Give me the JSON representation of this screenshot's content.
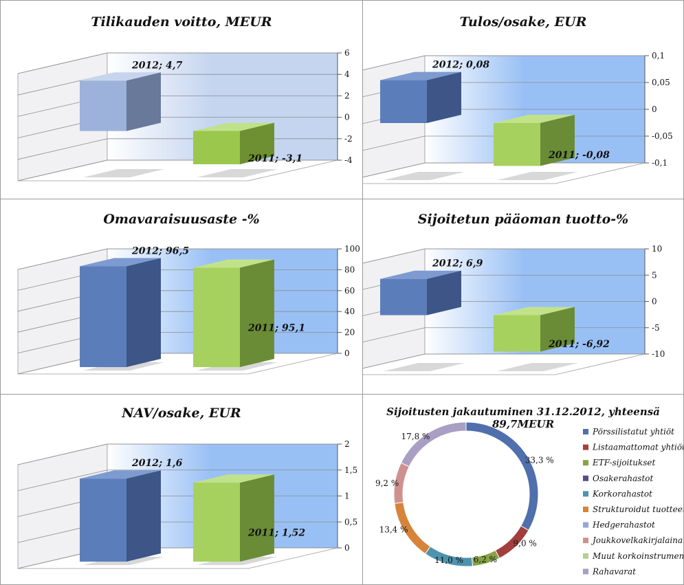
{
  "charts": [
    {
      "title": "Tilikauden voitto, MEUR",
      "type": "bar3d",
      "yticks": [
        "6",
        "4",
        "2",
        "0",
        "-2",
        "-4"
      ],
      "ymin": -4,
      "ymax": 6,
      "bg": "#c5d5f0",
      "bars": [
        {
          "value": 4.7,
          "label": "2012; 4,7",
          "front": "#9cb2da",
          "side": "#68799a",
          "top": "#c6d4ee"
        },
        {
          "value": -3.1,
          "label": "2011; -3,1",
          "front": "#9bc84c",
          "side": "#6f9032",
          "top": "#c1e08a"
        }
      ]
    },
    {
      "title": "Tulos/osake, EUR",
      "type": "bar3d",
      "yticks": [
        "0,1",
        "0,05",
        "0",
        "-0,05",
        "-0,1"
      ],
      "ymin": -0.1,
      "ymax": 0.1,
      "bg": "#99c0f5",
      "bars": [
        {
          "value": 0.08,
          "label": "2012; 0,08",
          "front": "#5b7ebb",
          "side": "#3d5587",
          "top": "#7d9bd0"
        },
        {
          "value": -0.08,
          "label": "2011; -0,08",
          "front": "#a6d15e",
          "side": "#6b8c36",
          "top": "#c2e28a"
        }
      ]
    },
    {
      "title": "Omavaraisuusaste -%",
      "type": "bar3d",
      "yticks": [
        "100",
        "80",
        "60",
        "40",
        "20",
        "0"
      ],
      "ymin": 0,
      "ymax": 100,
      "bg": "#99c0f5",
      "bars": [
        {
          "value": 96.5,
          "label": "2012; 96,5",
          "front": "#5b7ebb",
          "side": "#3d5587",
          "top": "#7d9bd0"
        },
        {
          "value": 95.1,
          "label": "2011; 95,1",
          "front": "#a6d15e",
          "side": "#6b8c36",
          "top": "#c2e28a"
        }
      ]
    },
    {
      "title": "Sijoitetun pääoman tuotto-%",
      "type": "bar3d",
      "yticks": [
        "10",
        "5",
        "0",
        "-5",
        "-10"
      ],
      "ymin": -10,
      "ymax": 10,
      "bg": "#99c0f5",
      "bars": [
        {
          "value": 6.9,
          "label": "2012; 6,9",
          "front": "#5b7ebb",
          "side": "#3d5587",
          "top": "#7d9bd0"
        },
        {
          "value": -6.92,
          "label": "2011; -6,92",
          "front": "#a6d15e",
          "side": "#6b8c36",
          "top": "#c2e28a"
        }
      ]
    },
    {
      "title": "NAV/osake, EUR",
      "type": "bar3d",
      "yticks": [
        "2",
        "1,5",
        "1",
        "0,5",
        "0"
      ],
      "ymin": 0,
      "ymax": 2,
      "bg": "#99c0f5",
      "bars": [
        {
          "value": 1.6,
          "label": "2012; 1,6",
          "front": "#5b7ebb",
          "side": "#3d5587",
          "top": "#7d9bd0"
        },
        {
          "value": 1.52,
          "label": "2011; 1,52",
          "front": "#a6d15e",
          "side": "#6b8c36",
          "top": "#c2e28a"
        }
      ]
    }
  ],
  "chart_data": {
    "type": "pie",
    "title": "Sijoitusten jakautuminen 31.12.2012, yhteensä 89,7MEUR",
    "slices": [
      {
        "name": "Pörssilistatut yhtiöt",
        "value": 33.3,
        "label": "33,3 %",
        "color": "#4f6fad"
      },
      {
        "name": "Listaamattomat yhtiöt",
        "value": 9.0,
        "label": "9,0 %",
        "color": "#a23f3d"
      },
      {
        "name": "ETF-sijoitukset",
        "value": 6.2,
        "label": "6,2 %",
        "color": "#86a346"
      },
      {
        "name": "Osakerahastot",
        "value": 0.0,
        "label": "",
        "color": "#5e4a88"
      },
      {
        "name": "Korkorahastot",
        "value": 11.0,
        "label": "11,0 %",
        "color": "#4e93ae"
      },
      {
        "name": "Strukturoidut tuotteet",
        "value": 13.4,
        "label": "13,4 %",
        "color": "#d6843c"
      },
      {
        "name": "Hedgerahastot",
        "value": 0.0,
        "label": "",
        "color": "#8fa8d5"
      },
      {
        "name": "Joukkovelkakirjalainat",
        "value": 9.2,
        "label": "9,2 %",
        "color": "#cf9190"
      },
      {
        "name": "Muut korkoinstrumentit",
        "value": 0.0,
        "label": "",
        "color": "#b5cf8e"
      },
      {
        "name": "Rahavarat",
        "value": 17.8,
        "label": "17,8 %",
        "color": "#a99ec4"
      }
    ]
  }
}
